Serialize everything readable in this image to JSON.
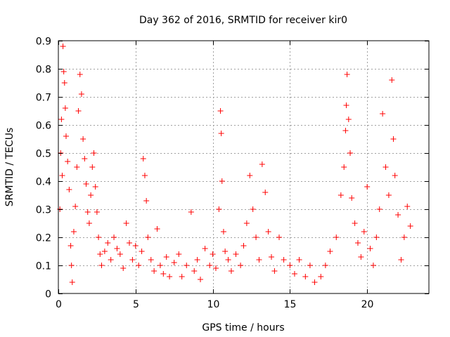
{
  "chart_data": {
    "type": "scatter",
    "title": "Day 362 of 2016, SRMTID for receiver kir0",
    "xlabel": "GPS time / hours",
    "ylabel": "SRMTID / TECUs",
    "xlim": [
      0,
      24
    ],
    "ylim": [
      0,
      0.9
    ],
    "x_ticks": [
      0,
      5,
      10,
      15,
      20
    ],
    "y_ticks": [
      0,
      0.1,
      0.2,
      0.3,
      0.4,
      0.5,
      0.6,
      0.7,
      0.8,
      0.9
    ],
    "x_tick_labels": [
      "0",
      "5",
      "10",
      "15",
      "20"
    ],
    "y_tick_labels": [
      "0",
      "0.1",
      "0.2",
      "0.3",
      "0.4",
      "0.5",
      "0.6",
      "0.7",
      "0.8",
      "0.9"
    ],
    "grid": true,
    "marker": "plus",
    "series": [
      {
        "name": "SRMTID",
        "color": "#ff0000",
        "points": [
          [
            0.1,
            0.3
          ],
          [
            0.15,
            0.5
          ],
          [
            0.2,
            0.62
          ],
          [
            0.25,
            0.42
          ],
          [
            0.3,
            0.88
          ],
          [
            0.35,
            0.79
          ],
          [
            0.4,
            0.75
          ],
          [
            0.45,
            0.66
          ],
          [
            0.5,
            0.56
          ],
          [
            0.6,
            0.47
          ],
          [
            0.7,
            0.37
          ],
          [
            0.8,
            0.17
          ],
          [
            0.85,
            0.1
          ],
          [
            0.9,
            0.04
          ],
          [
            1.0,
            0.22
          ],
          [
            1.1,
            0.31
          ],
          [
            1.2,
            0.45
          ],
          [
            1.3,
            0.65
          ],
          [
            1.4,
            0.78
          ],
          [
            1.5,
            0.71
          ],
          [
            1.6,
            0.55
          ],
          [
            1.7,
            0.48
          ],
          [
            1.8,
            0.39
          ],
          [
            1.9,
            0.29
          ],
          [
            2.0,
            0.25
          ],
          [
            2.1,
            0.35
          ],
          [
            2.2,
            0.45
          ],
          [
            2.3,
            0.5
          ],
          [
            2.4,
            0.38
          ],
          [
            2.5,
            0.29
          ],
          [
            2.6,
            0.2
          ],
          [
            2.7,
            0.14
          ],
          [
            2.8,
            0.1
          ],
          [
            3.0,
            0.15
          ],
          [
            3.2,
            0.18
          ],
          [
            3.4,
            0.12
          ],
          [
            3.6,
            0.2
          ],
          [
            3.8,
            0.16
          ],
          [
            4.0,
            0.14
          ],
          [
            4.2,
            0.09
          ],
          [
            4.4,
            0.25
          ],
          [
            4.6,
            0.18
          ],
          [
            4.8,
            0.12
          ],
          [
            5.0,
            0.17
          ],
          [
            5.2,
            0.1
          ],
          [
            5.4,
            0.15
          ],
          [
            5.5,
            0.48
          ],
          [
            5.6,
            0.42
          ],
          [
            5.7,
            0.33
          ],
          [
            5.8,
            0.2
          ],
          [
            6.0,
            0.12
          ],
          [
            6.2,
            0.08
          ],
          [
            6.4,
            0.23
          ],
          [
            6.6,
            0.1
          ],
          [
            6.8,
            0.07
          ],
          [
            7.0,
            0.13
          ],
          [
            7.2,
            0.06
          ],
          [
            7.5,
            0.11
          ],
          [
            7.8,
            0.14
          ],
          [
            8.0,
            0.06
          ],
          [
            8.3,
            0.1
          ],
          [
            8.6,
            0.29
          ],
          [
            8.8,
            0.08
          ],
          [
            9.0,
            0.12
          ],
          [
            9.2,
            0.05
          ],
          [
            9.5,
            0.16
          ],
          [
            9.8,
            0.1
          ],
          [
            10.0,
            0.14
          ],
          [
            10.2,
            0.09
          ],
          [
            10.4,
            0.3
          ],
          [
            10.5,
            0.65
          ],
          [
            10.55,
            0.57
          ],
          [
            10.6,
            0.4
          ],
          [
            10.7,
            0.22
          ],
          [
            10.8,
            0.15
          ],
          [
            11.0,
            0.12
          ],
          [
            11.2,
            0.08
          ],
          [
            11.5,
            0.14
          ],
          [
            11.8,
            0.1
          ],
          [
            12.0,
            0.17
          ],
          [
            12.2,
            0.25
          ],
          [
            12.4,
            0.42
          ],
          [
            12.6,
            0.3
          ],
          [
            12.8,
            0.2
          ],
          [
            13.0,
            0.12
          ],
          [
            13.2,
            0.46
          ],
          [
            13.4,
            0.36
          ],
          [
            13.6,
            0.22
          ],
          [
            13.8,
            0.13
          ],
          [
            14.0,
            0.08
          ],
          [
            14.3,
            0.2
          ],
          [
            14.6,
            0.12
          ],
          [
            15.0,
            0.1
          ],
          [
            15.3,
            0.07
          ],
          [
            15.6,
            0.12
          ],
          [
            16.0,
            0.06
          ],
          [
            16.3,
            0.1
          ],
          [
            16.6,
            0.04
          ],
          [
            17.0,
            0.06
          ],
          [
            17.3,
            0.1
          ],
          [
            17.6,
            0.15
          ],
          [
            18.0,
            0.2
          ],
          [
            18.3,
            0.35
          ],
          [
            18.5,
            0.45
          ],
          [
            18.6,
            0.58
          ],
          [
            18.65,
            0.67
          ],
          [
            18.7,
            0.78
          ],
          [
            18.8,
            0.62
          ],
          [
            18.9,
            0.5
          ],
          [
            19.0,
            0.34
          ],
          [
            19.2,
            0.25
          ],
          [
            19.4,
            0.18
          ],
          [
            19.6,
            0.13
          ],
          [
            19.8,
            0.22
          ],
          [
            20.0,
            0.38
          ],
          [
            20.2,
            0.16
          ],
          [
            20.4,
            0.1
          ],
          [
            20.6,
            0.2
          ],
          [
            20.8,
            0.3
          ],
          [
            21.0,
            0.64
          ],
          [
            21.2,
            0.45
          ],
          [
            21.4,
            0.35
          ],
          [
            21.6,
            0.76
          ],
          [
            21.7,
            0.55
          ],
          [
            21.8,
            0.42
          ],
          [
            22.0,
            0.28
          ],
          [
            22.2,
            0.12
          ],
          [
            22.4,
            0.2
          ],
          [
            22.6,
            0.31
          ],
          [
            22.8,
            0.24
          ]
        ]
      }
    ]
  }
}
